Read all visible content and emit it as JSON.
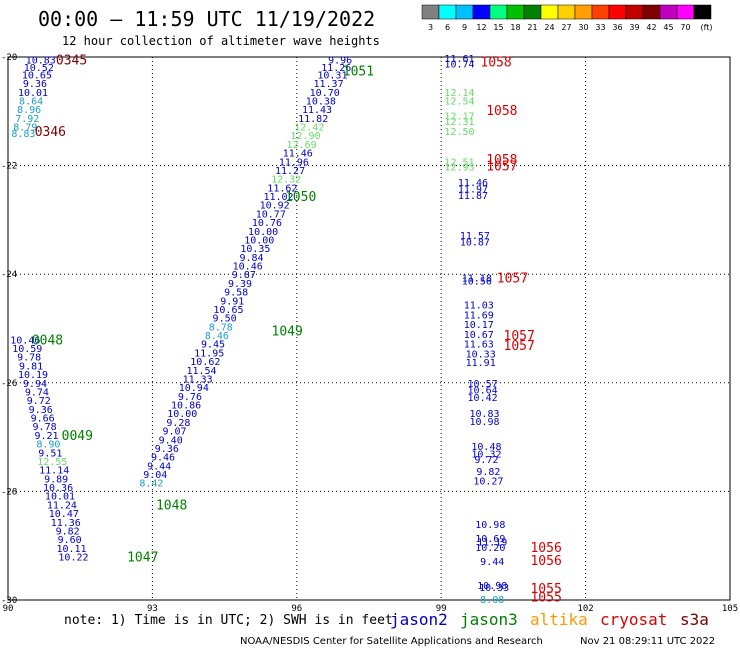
{
  "header": {
    "title": "00:00 – 11:59 UTC 11/19/2022",
    "subtitle": "12 hour collection of altimeter wave heights"
  },
  "colorbar": {
    "colors": [
      "#808080",
      "#00ffff",
      "#00bfff",
      "#0000ff",
      "#00ff80",
      "#00c000",
      "#008000",
      "#ffff00",
      "#ffd000",
      "#ffa000",
      "#ff4000",
      "#ff0000",
      "#c00000",
      "#800000",
      "#c000c0",
      "#ff00ff",
      "#000000"
    ],
    "labels": [
      "3",
      "6",
      "9",
      "12",
      "15",
      "18",
      "21",
      "24",
      "27",
      "30",
      "33",
      "36",
      "39",
      "42",
      "45",
      "70",
      "(ft)"
    ]
  },
  "chart_data": {
    "type": "scatter",
    "xlim": [
      90,
      105
    ],
    "ylim": [
      -30,
      -20
    ],
    "x_ticks": [
      90,
      93,
      96,
      99,
      102,
      105
    ],
    "y_ticks": [
      -20,
      -22,
      -24,
      -26,
      -28,
      -30
    ],
    "grid": true,
    "points": [
      {
        "x": 90.68,
        "y": -20.05,
        "v": "10.83",
        "c": "#0000cc"
      },
      {
        "x": 90.64,
        "y": -20.18,
        "v": "10.52",
        "c": "#0000cc"
      },
      {
        "x": 90.6,
        "y": -20.32,
        "v": "10.65",
        "c": "#0000cc"
      },
      {
        "x": 90.56,
        "y": -20.48,
        "v": "9.36",
        "c": "#0000cc"
      },
      {
        "x": 90.52,
        "y": -20.64,
        "v": "10.01",
        "c": "#0000cc"
      },
      {
        "x": 90.48,
        "y": -20.8,
        "v": "8.64",
        "c": "#1ca0c8"
      },
      {
        "x": 90.44,
        "y": -20.96,
        "v": "8.96",
        "c": "#1ca0c8"
      },
      {
        "x": 90.4,
        "y": -21.12,
        "v": "7.92",
        "c": "#1ca0c8"
      },
      {
        "x": 90.36,
        "y": -21.28,
        "v": "8.79",
        "c": "#1ca0c8"
      },
      {
        "x": 90.32,
        "y": -21.4,
        "v": "8.83",
        "c": "#1ca0c8"
      },
      {
        "x": 96.9,
        "y": -20.05,
        "v": "9.96",
        "c": "#0000cc"
      },
      {
        "x": 96.82,
        "y": -20.18,
        "v": "11.26",
        "c": "#0000cc"
      },
      {
        "x": 96.74,
        "y": -20.32,
        "v": "10.31",
        "c": "#0000cc"
      },
      {
        "x": 96.66,
        "y": -20.48,
        "v": "11.37",
        "c": "#0000cc"
      },
      {
        "x": 96.58,
        "y": -20.64,
        "v": "10.70",
        "c": "#0000cc"
      },
      {
        "x": 96.5,
        "y": -20.8,
        "v": "10.38",
        "c": "#0000cc"
      },
      {
        "x": 96.42,
        "y": -20.96,
        "v": "11.43",
        "c": "#0000cc"
      },
      {
        "x": 96.34,
        "y": -21.12,
        "v": "11.82",
        "c": "#0000cc"
      },
      {
        "x": 96.26,
        "y": -21.28,
        "v": "12.42",
        "c": "#66dd66"
      },
      {
        "x": 96.18,
        "y": -21.44,
        "v": "12.90",
        "c": "#66dd66"
      },
      {
        "x": 96.1,
        "y": -21.6,
        "v": "12.69",
        "c": "#66dd66"
      },
      {
        "x": 96.02,
        "y": -21.76,
        "v": "11.46",
        "c": "#0000cc"
      },
      {
        "x": 95.94,
        "y": -21.92,
        "v": "11.96",
        "c": "#0000cc"
      },
      {
        "x": 95.86,
        "y": -22.08,
        "v": "11.27",
        "c": "#0000cc"
      },
      {
        "x": 95.78,
        "y": -22.24,
        "v": "12.32",
        "c": "#66dd66"
      },
      {
        "x": 95.7,
        "y": -22.4,
        "v": "11.62",
        "c": "#0000cc"
      },
      {
        "x": 95.62,
        "y": -22.56,
        "v": "11.02",
        "c": "#0000cc"
      },
      {
        "x": 95.54,
        "y": -22.72,
        "v": "10.92",
        "c": "#0000cc"
      },
      {
        "x": 95.46,
        "y": -22.88,
        "v": "10.77",
        "c": "#0000cc"
      },
      {
        "x": 95.38,
        "y": -23.04,
        "v": "10.76",
        "c": "#0000cc"
      },
      {
        "x": 95.3,
        "y": -23.2,
        "v": "10.00",
        "c": "#0000cc"
      },
      {
        "x": 95.22,
        "y": -23.36,
        "v": "10.00",
        "c": "#0000cc"
      },
      {
        "x": 95.14,
        "y": -23.52,
        "v": "10.35",
        "c": "#0000cc"
      },
      {
        "x": 95.06,
        "y": -23.68,
        "v": "9.84",
        "c": "#0000cc"
      },
      {
        "x": 94.98,
        "y": -23.84,
        "v": "10.46",
        "c": "#0000cc"
      },
      {
        "x": 94.9,
        "y": -24.0,
        "v": "9.87",
        "c": "#0000cc"
      },
      {
        "x": 94.82,
        "y": -24.16,
        "v": "9.39",
        "c": "#0000cc"
      },
      {
        "x": 94.74,
        "y": -24.32,
        "v": "9.58",
        "c": "#0000cc"
      },
      {
        "x": 94.66,
        "y": -24.48,
        "v": "9.91",
        "c": "#0000cc"
      },
      {
        "x": 94.58,
        "y": -24.64,
        "v": "10.65",
        "c": "#0000cc"
      },
      {
        "x": 94.5,
        "y": -24.8,
        "v": "9.50",
        "c": "#0000cc"
      },
      {
        "x": 94.42,
        "y": -24.96,
        "v": "8.78",
        "c": "#1ca0c8"
      },
      {
        "x": 94.34,
        "y": -25.12,
        "v": "8.46",
        "c": "#1ca0c8"
      },
      {
        "x": 94.26,
        "y": -25.28,
        "v": "9.45",
        "c": "#0000cc"
      },
      {
        "x": 94.18,
        "y": -25.44,
        "v": "11.95",
        "c": "#0000cc"
      },
      {
        "x": 94.1,
        "y": -25.6,
        "v": "10.62",
        "c": "#0000cc"
      },
      {
        "x": 94.02,
        "y": -25.76,
        "v": "11.54",
        "c": "#0000cc"
      },
      {
        "x": 93.94,
        "y": -25.92,
        "v": "11.33",
        "c": "#0000cc"
      },
      {
        "x": 93.86,
        "y": -26.08,
        "v": "10.94",
        "c": "#0000cc"
      },
      {
        "x": 93.78,
        "y": -26.24,
        "v": "9.76",
        "c": "#0000cc"
      },
      {
        "x": 93.7,
        "y": -26.4,
        "v": "10.86",
        "c": "#0000cc"
      },
      {
        "x": 93.62,
        "y": -26.56,
        "v": "10.00",
        "c": "#0000cc"
      },
      {
        "x": 93.54,
        "y": -26.72,
        "v": "9.28",
        "c": "#0000cc"
      },
      {
        "x": 93.46,
        "y": -26.88,
        "v": "9.07",
        "c": "#0000cc"
      },
      {
        "x": 93.38,
        "y": -27.04,
        "v": "9.40",
        "c": "#0000cc"
      },
      {
        "x": 93.3,
        "y": -27.2,
        "v": "9.36",
        "c": "#0000cc"
      },
      {
        "x": 93.22,
        "y": -27.36,
        "v": "9.46",
        "c": "#0000cc"
      },
      {
        "x": 93.14,
        "y": -27.52,
        "v": "9.44",
        "c": "#0000cc"
      },
      {
        "x": 93.06,
        "y": -27.68,
        "v": "9.04",
        "c": "#0000cc"
      },
      {
        "x": 92.98,
        "y": -27.84,
        "v": "8.42",
        "c": "#1ca0c8"
      },
      {
        "x": 90.36,
        "y": -25.2,
        "v": "10.46",
        "c": "#0000cc"
      },
      {
        "x": 90.4,
        "y": -25.36,
        "v": "10.59",
        "c": "#0000cc"
      },
      {
        "x": 90.44,
        "y": -25.52,
        "v": "9.78",
        "c": "#0000cc"
      },
      {
        "x": 90.48,
        "y": -25.68,
        "v": "9.81",
        "c": "#0000cc"
      },
      {
        "x": 90.52,
        "y": -25.84,
        "v": "10.19",
        "c": "#0000cc"
      },
      {
        "x": 90.56,
        "y": -26.0,
        "v": "9.94",
        "c": "#0000cc"
      },
      {
        "x": 90.6,
        "y": -26.16,
        "v": "9.74",
        "c": "#0000cc"
      },
      {
        "x": 90.64,
        "y": -26.32,
        "v": "9.72",
        "c": "#0000cc"
      },
      {
        "x": 90.68,
        "y": -26.48,
        "v": "9.36",
        "c": "#0000cc"
      },
      {
        "x": 90.72,
        "y": -26.64,
        "v": "9.66",
        "c": "#0000cc"
      },
      {
        "x": 90.76,
        "y": -26.8,
        "v": "9.78",
        "c": "#0000cc"
      },
      {
        "x": 90.8,
        "y": -26.96,
        "v": "9.21",
        "c": "#0000cc"
      },
      {
        "x": 90.84,
        "y": -27.12,
        "v": "8.90",
        "c": "#1ca0c8"
      },
      {
        "x": 90.88,
        "y": -27.28,
        "v": "9.51",
        "c": "#0000cc"
      },
      {
        "x": 90.92,
        "y": -27.44,
        "v": "12.55",
        "c": "#66dd66"
      },
      {
        "x": 90.96,
        "y": -27.6,
        "v": "11.14",
        "c": "#0000cc"
      },
      {
        "x": 91.0,
        "y": -27.76,
        "v": "9.89",
        "c": "#0000cc"
      },
      {
        "x": 91.04,
        "y": -27.92,
        "v": "10.36",
        "c": "#0000cc"
      },
      {
        "x": 91.08,
        "y": -28.08,
        "v": "10.01",
        "c": "#0000cc"
      },
      {
        "x": 91.12,
        "y": -28.24,
        "v": "11.24",
        "c": "#0000cc"
      },
      {
        "x": 91.16,
        "y": -28.4,
        "v": "10.47",
        "c": "#0000cc"
      },
      {
        "x": 91.2,
        "y": -28.56,
        "v": "11.36",
        "c": "#0000cc"
      },
      {
        "x": 91.24,
        "y": -28.72,
        "v": "9.82",
        "c": "#0000cc"
      },
      {
        "x": 91.28,
        "y": -28.88,
        "v": "9.60",
        "c": "#0000cc"
      },
      {
        "x": 91.32,
        "y": -29.04,
        "v": "10.11",
        "c": "#0000cc"
      },
      {
        "x": 91.36,
        "y": -29.2,
        "v": "10.22",
        "c": "#0000cc"
      },
      {
        "x": 99.38,
        "y": -20.02,
        "v": "11.61",
        "c": "#0000cc"
      },
      {
        "x": 99.38,
        "y": -20.12,
        "v": "10.74",
        "c": "#0000cc"
      },
      {
        "x": 99.38,
        "y": -20.64,
        "v": "12.14",
        "c": "#66dd66"
      },
      {
        "x": 99.38,
        "y": -20.8,
        "v": "12.54",
        "c": "#66dd66"
      },
      {
        "x": 99.38,
        "y": -21.08,
        "v": "12.17",
        "c": "#66dd66"
      },
      {
        "x": 99.38,
        "y": -21.18,
        "v": "12.31",
        "c": "#66dd66"
      },
      {
        "x": 99.38,
        "y": -21.36,
        "v": "12.50",
        "c": "#66dd66"
      },
      {
        "x": 99.38,
        "y": -21.92,
        "v": "12.51",
        "c": "#66dd66"
      },
      {
        "x": 99.38,
        "y": -22.02,
        "v": "12.93",
        "c": "#66dd66"
      },
      {
        "x": 99.66,
        "y": -22.3,
        "v": "11.46",
        "c": "#0000cc"
      },
      {
        "x": 99.66,
        "y": -22.42,
        "v": "11.97",
        "c": "#0000cc"
      },
      {
        "x": 99.66,
        "y": -22.54,
        "v": "11.87",
        "c": "#0000cc"
      },
      {
        "x": 99.7,
        "y": -23.28,
        "v": "11.57",
        "c": "#0000cc"
      },
      {
        "x": 99.7,
        "y": -23.4,
        "v": "10.87",
        "c": "#0000cc"
      },
      {
        "x": 99.74,
        "y": -24.06,
        "v": "11.18",
        "c": "#0000cc"
      },
      {
        "x": 99.74,
        "y": -24.12,
        "v": "10.56",
        "c": "#0000cc"
      },
      {
        "x": 99.78,
        "y": -24.56,
        "v": "11.03",
        "c": "#0000cc"
      },
      {
        "x": 99.78,
        "y": -24.74,
        "v": "11.69",
        "c": "#0000cc"
      },
      {
        "x": 99.78,
        "y": -24.92,
        "v": "10.17",
        "c": "#0000cc"
      },
      {
        "x": 99.78,
        "y": -25.1,
        "v": "10.67",
        "c": "#0000cc"
      },
      {
        "x": 99.78,
        "y": -25.28,
        "v": "11.63",
        "c": "#0000cc"
      },
      {
        "x": 99.82,
        "y": -25.46,
        "v": "10.33",
        "c": "#0000cc"
      },
      {
        "x": 99.82,
        "y": -25.62,
        "v": "11.91",
        "c": "#0000cc"
      },
      {
        "x": 99.86,
        "y": -26.0,
        "v": "10.57",
        "c": "#0000cc"
      },
      {
        "x": 99.86,
        "y": -26.12,
        "v": "10.64",
        "c": "#0000cc"
      },
      {
        "x": 99.86,
        "y": -26.26,
        "v": "10.42",
        "c": "#0000cc"
      },
      {
        "x": 99.9,
        "y": -26.56,
        "v": "10.83",
        "c": "#0000cc"
      },
      {
        "x": 99.9,
        "y": -26.7,
        "v": "10.98",
        "c": "#0000cc"
      },
      {
        "x": 99.94,
        "y": -27.16,
        "v": "10.48",
        "c": "#0000cc"
      },
      {
        "x": 99.94,
        "y": -27.3,
        "v": "10.32",
        "c": "#0000cc"
      },
      {
        "x": 99.94,
        "y": -27.4,
        "v": "9.72",
        "c": "#0000cc"
      },
      {
        "x": 99.98,
        "y": -27.62,
        "v": "9.82",
        "c": "#0000cc"
      },
      {
        "x": 99.98,
        "y": -27.8,
        "v": "10.27",
        "c": "#0000cc"
      },
      {
        "x": 100.02,
        "y": -28.6,
        "v": "10.98",
        "c": "#0000cc"
      },
      {
        "x": 100.02,
        "y": -28.86,
        "v": "10.69",
        "c": "#0000cc"
      },
      {
        "x": 100.06,
        "y": -28.92,
        "v": "11.19",
        "c": "#0000cc"
      },
      {
        "x": 100.02,
        "y": -29.02,
        "v": "10.20",
        "c": "#0000cc"
      },
      {
        "x": 100.06,
        "y": -29.28,
        "v": "9.44",
        "c": "#0000cc"
      },
      {
        "x": 100.06,
        "y": -29.72,
        "v": "10.98",
        "c": "#0000cc"
      },
      {
        "x": 100.1,
        "y": -29.76,
        "v": "10.33",
        "c": "#0000cc"
      },
      {
        "x": 100.06,
        "y": -29.98,
        "v": "8.08",
        "c": "#1ca0c8"
      }
    ],
    "tags": [
      {
        "x": 91.32,
        "y": -20.05,
        "t": "0345",
        "c": "#800000"
      },
      {
        "x": 90.88,
        "y": -21.36,
        "t": "0346",
        "c": "#800000"
      },
      {
        "x": 97.28,
        "y": -20.25,
        "t": "1051",
        "c": "#008000"
      },
      {
        "x": 96.08,
        "y": -22.56,
        "t": "1050",
        "c": "#008000"
      },
      {
        "x": 95.8,
        "y": -25.04,
        "t": "1049",
        "c": "#008000"
      },
      {
        "x": 90.82,
        "y": -25.2,
        "t": "0048",
        "c": "#008000"
      },
      {
        "x": 91.44,
        "y": -26.96,
        "t": "0049",
        "c": "#008000"
      },
      {
        "x": 93.4,
        "y": -28.24,
        "t": "1048",
        "c": "#008000"
      },
      {
        "x": 92.8,
        "y": -29.2,
        "t": "1047",
        "c": "#008000"
      },
      {
        "x": 100.14,
        "y": -20.08,
        "t": "1058",
        "c": "#dd0000"
      },
      {
        "x": 100.26,
        "y": -20.98,
        "t": "1058",
        "c": "#dd0000"
      },
      {
        "x": 100.26,
        "y": -21.88,
        "t": "1058",
        "c": "#dd0000"
      },
      {
        "x": 100.26,
        "y": -22.0,
        "t": "1057",
        "c": "#dd0000"
      },
      {
        "x": 100.48,
        "y": -24.06,
        "t": "1057",
        "c": "#dd0000"
      },
      {
        "x": 100.62,
        "y": -25.12,
        "t": "1057",
        "c": "#dd0000"
      },
      {
        "x": 100.62,
        "y": -25.3,
        "t": "1057",
        "c": "#dd0000"
      },
      {
        "x": 101.18,
        "y": -29.02,
        "t": "1056",
        "c": "#dd0000"
      },
      {
        "x": 101.18,
        "y": -29.26,
        "t": "1056",
        "c": "#dd0000"
      },
      {
        "x": 101.18,
        "y": -29.78,
        "t": "1055",
        "c": "#dd0000"
      },
      {
        "x": 101.18,
        "y": -29.94,
        "t": "1055",
        "c": "#dd0000"
      }
    ]
  },
  "footer": {
    "note": "note:  1) Time is in UTC; 2) SWH is in feet",
    "satellites": [
      {
        "label": "jason2",
        "color": "#0000cc"
      },
      {
        "label": "jason3",
        "color": "#008000"
      },
      {
        "label": "altika",
        "color": "#ff9900"
      },
      {
        "label": "cryosat",
        "color": "#dd0000"
      },
      {
        "label": "s3a",
        "color": "#800000"
      }
    ],
    "credit": "NOAA/NESDIS Center for Satellite Applications and Research",
    "timestamp": "Nov 21 08:29:11 UTC 2022"
  }
}
